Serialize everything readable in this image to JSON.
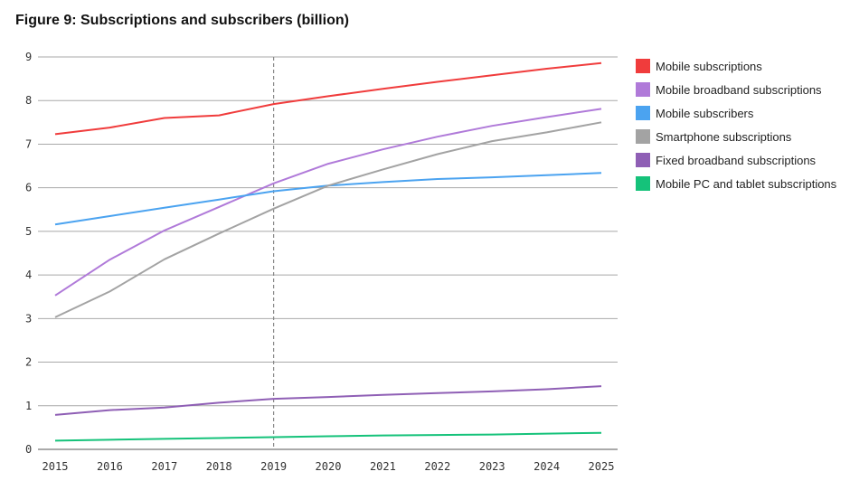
{
  "chart_data": {
    "type": "line",
    "title": "Figure 9: Subscriptions and subscribers (billion)",
    "xlabel": "",
    "ylabel": "",
    "x": [
      "2015",
      "2016",
      "2017",
      "2018",
      "2019",
      "2020",
      "2021",
      "2022",
      "2023",
      "2024",
      "2025"
    ],
    "ylim": [
      0,
      9
    ],
    "yticks": [
      0,
      1,
      2,
      3,
      4,
      5,
      6,
      7,
      8,
      9
    ],
    "grid": "horizontal",
    "legend_position": "right",
    "reference_line_x": "2019",
    "series": [
      {
        "name": "Mobile subscriptions",
        "color": "#f03c3c",
        "values": [
          7.23,
          7.38,
          7.6,
          7.66,
          7.92,
          8.1,
          8.27,
          8.43,
          8.58,
          8.73,
          8.86
        ]
      },
      {
        "name": "Mobile broadband subscriptions",
        "color": "#b07ad9",
        "values": [
          3.53,
          4.35,
          5.02,
          5.56,
          6.1,
          6.55,
          6.88,
          7.17,
          7.42,
          7.62,
          7.81
        ]
      },
      {
        "name": "Mobile subscribers",
        "color": "#4ba3f0",
        "values": [
          5.16,
          5.35,
          5.54,
          5.73,
          5.92,
          6.05,
          6.13,
          6.2,
          6.24,
          6.29,
          6.34
        ]
      },
      {
        "name": "Smartphone subscriptions",
        "color": "#a3a3a3",
        "values": [
          3.03,
          3.62,
          4.36,
          4.95,
          5.52,
          6.05,
          6.42,
          6.77,
          7.07,
          7.27,
          7.5
        ]
      },
      {
        "name": "Fixed broadband subscriptions",
        "color": "#8f5fb5",
        "values": [
          0.79,
          0.9,
          0.96,
          1.07,
          1.16,
          1.2,
          1.25,
          1.29,
          1.33,
          1.38,
          1.45
        ]
      },
      {
        "name": "Mobile PC and tablet subscriptions",
        "color": "#15c27a",
        "values": [
          0.2,
          0.22,
          0.24,
          0.26,
          0.28,
          0.3,
          0.32,
          0.33,
          0.34,
          0.36,
          0.38
        ]
      }
    ]
  }
}
